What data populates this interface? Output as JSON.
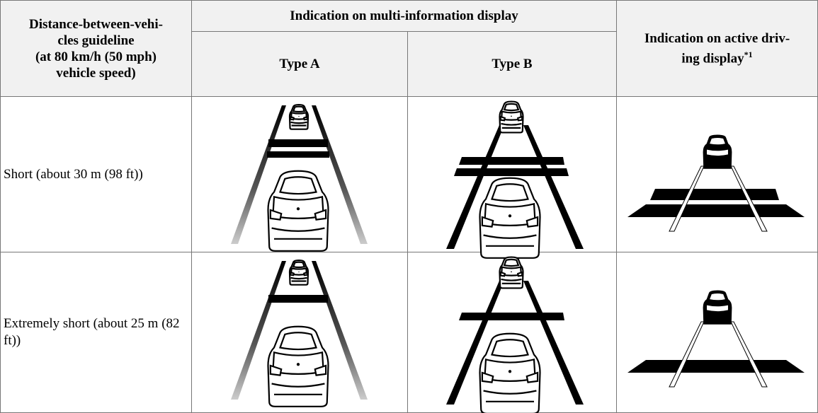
{
  "table": {
    "header": {
      "guideline": [
        "Distance-between-vehi-",
        "cles guideline",
        "(at 80 km/h (50 mph)",
        "vehicle speed)"
      ],
      "multi_info": "Indication on multi-information display",
      "type_a": "Type A",
      "type_b": "Type B",
      "active": {
        "lines": [
          "Indication on active driv-",
          "ing display"
        ],
        "note": "*1"
      }
    },
    "rows": [
      [
        "Short (about 30 m (98 ft))"
      ],
      [
        "Extremely short (about 25 m (82 ft))"
      ]
    ]
  }
}
